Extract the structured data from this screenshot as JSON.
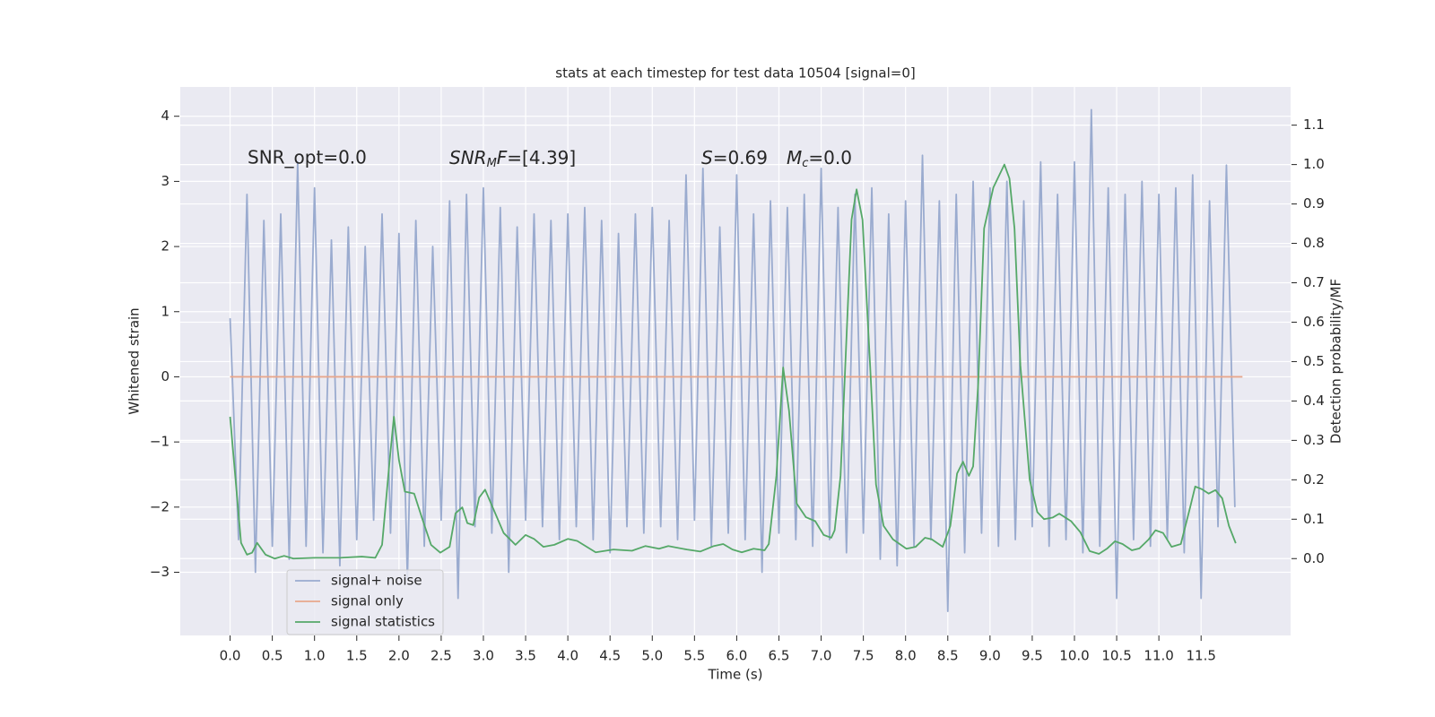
{
  "chart_data": {
    "type": "line",
    "title": "stats at each timestep for test data 10504 [signal=0]",
    "xlabel": "Time (s)",
    "ylabel": "Whitened strain",
    "y2label": "Detection probability/MF",
    "annotations": [
      {
        "text": "SNR_opt=0.0"
      },
      {
        "base": "SNR",
        "sub": "M",
        "base2": "F",
        "rest": "=[4.39]"
      },
      {
        "base": "S",
        "rest": "=0.69"
      },
      {
        "base": "M",
        "sub": "c",
        "rest": "=0.0"
      }
    ],
    "xlim": [
      -0.59,
      12.56
    ],
    "ylim": [
      -3.97,
      4.45
    ],
    "y2lim": [
      -0.195,
      1.197
    ],
    "xticks": [
      {
        "value": 0,
        "label": "0.0"
      },
      0.5,
      {
        "value": 1,
        "label": "1.0"
      },
      1.5,
      {
        "value": 2,
        "label": "2.0"
      },
      2.5,
      {
        "value": 3,
        "label": "3.0"
      },
      3.5,
      {
        "value": 4,
        "label": "4.0"
      },
      4.5,
      {
        "value": 5,
        "label": "5.0"
      },
      5.5,
      {
        "value": 6,
        "label": "6.0"
      },
      6.5,
      {
        "value": 7,
        "label": "7.0"
      },
      7.5,
      {
        "value": 8,
        "label": "8.0"
      },
      8.5,
      {
        "value": 9,
        "label": "9.0"
      },
      9.5,
      {
        "value": 10,
        "label": "10.0"
      },
      10.5,
      {
        "value": 11,
        "label": "11.0"
      },
      11.5
    ],
    "yticks": [
      {
        "value": -3,
        "label": "−3"
      },
      {
        "value": -2,
        "label": "−2"
      },
      {
        "value": -1,
        "label": "−1"
      },
      0,
      1,
      2,
      3,
      4
    ],
    "y2ticks": [
      {
        "value": 0,
        "label": "0.0"
      },
      0.1,
      0.2,
      0.3,
      0.4,
      0.5,
      0.6,
      0.7,
      0.8,
      0.9,
      {
        "value": 1,
        "label": "1.0"
      },
      1.1
    ],
    "grid": true,
    "legend": "lower left",
    "series": [
      {
        "name": "signal+ noise",
        "color": "#9aabcf",
        "axis": "y",
        "x": [
          0.0,
          0.1,
          0.2,
          0.3,
          0.4,
          0.5,
          0.6,
          0.7,
          0.8,
          0.9,
          1.0,
          1.1,
          1.2,
          1.3,
          1.4,
          1.5,
          1.6,
          1.7,
          1.8,
          1.9,
          2.0,
          2.1,
          2.2,
          2.3,
          2.4,
          2.5,
          2.6,
          2.7,
          2.8,
          2.9,
          3.0,
          3.1,
          3.2,
          3.3,
          3.4,
          3.5,
          3.6,
          3.7,
          3.8,
          3.9,
          4.0,
          4.1,
          4.2,
          4.3,
          4.4,
          4.5,
          4.6,
          4.7,
          4.8,
          4.9,
          5.0,
          5.1,
          5.2,
          5.3,
          5.4,
          5.5,
          5.6,
          5.7,
          5.8,
          5.9,
          6.0,
          6.1,
          6.2,
          6.3,
          6.4,
          6.5,
          6.6,
          6.7,
          6.8,
          6.9,
          7.0,
          7.1,
          7.2,
          7.3,
          7.4,
          7.5,
          7.6,
          7.7,
          7.8,
          7.9,
          8.0,
          8.1,
          8.2,
          8.3,
          8.4,
          8.5,
          8.6,
          8.7,
          8.8,
          8.9,
          9.0,
          9.1,
          9.2,
          9.3,
          9.4,
          9.5,
          9.6,
          9.7,
          9.8,
          9.9,
          10.0,
          10.1,
          10.2,
          10.3,
          10.4,
          10.5,
          10.6,
          10.7,
          10.8,
          10.9,
          11.0,
          11.1,
          11.2,
          11.3,
          11.4,
          11.5,
          11.6,
          11.7,
          11.8,
          11.9
        ],
        "values": [
          0.9,
          -2.5,
          2.8,
          -3.0,
          2.4,
          -2.6,
          2.5,
          -2.8,
          3.3,
          -2.6,
          2.9,
          -2.7,
          2.1,
          -2.9,
          2.3,
          -2.5,
          2.0,
          -2.2,
          2.5,
          -2.4,
          2.2,
          -3.1,
          2.4,
          -2.6,
          2.0,
          -2.2,
          2.7,
          -3.4,
          2.8,
          -2.3,
          2.9,
          -2.4,
          2.6,
          -3.0,
          2.3,
          -2.2,
          2.5,
          -2.3,
          2.4,
          -2.5,
          2.5,
          -2.3,
          2.6,
          -2.5,
          2.4,
          -2.7,
          2.2,
          -2.3,
          2.5,
          -2.4,
          2.6,
          -2.3,
          2.4,
          -2.5,
          3.1,
          -2.2,
          3.2,
          -2.6,
          2.3,
          -2.4,
          3.1,
          -2.5,
          2.5,
          -3.0,
          2.7,
          -2.4,
          2.6,
          -2.5,
          2.8,
          -2.6,
          3.2,
          -2.5,
          2.6,
          -2.7,
          2.8,
          -2.4,
          2.9,
          -2.8,
          2.5,
          -2.9,
          2.7,
          -2.6,
          3.4,
          -2.5,
          2.7,
          -3.6,
          2.8,
          -2.7,
          3.0,
          -2.4,
          2.9,
          -2.6,
          3.0,
          -2.5,
          2.7,
          -2.3,
          3.3,
          -2.6,
          2.8,
          -2.5,
          3.3,
          -2.7,
          4.1,
          -2.6,
          2.9,
          -3.4,
          2.8,
          -2.5,
          3.0,
          -2.6,
          2.8,
          -2.5,
          2.9,
          -2.7,
          3.1,
          -3.4,
          2.7,
          -2.3,
          3.25,
          -2.0
        ]
      },
      {
        "name": "signal only",
        "color": "#e8a78c",
        "axis": "y",
        "x": [
          0.0,
          11.99
        ],
        "values": [
          0,
          0
        ]
      },
      {
        "name": "signal statistics",
        "color": "#55a868",
        "axis": "y2",
        "x": [
          0.0,
          0.13,
          0.2,
          0.26,
          0.32,
          0.42,
          0.53,
          0.64,
          0.75,
          1.0,
          1.3,
          1.56,
          1.72,
          1.8,
          1.89,
          1.94,
          2.0,
          2.07,
          2.18,
          2.27,
          2.38,
          2.49,
          2.6,
          2.67,
          2.75,
          2.81,
          2.88,
          2.95,
          3.02,
          3.13,
          3.24,
          3.38,
          3.5,
          3.6,
          3.71,
          3.84,
          4.0,
          4.11,
          4.33,
          4.54,
          4.76,
          4.92,
          5.08,
          5.19,
          5.41,
          5.57,
          5.73,
          5.84,
          5.95,
          6.06,
          6.2,
          6.33,
          6.38,
          6.47,
          6.55,
          6.62,
          6.71,
          6.82,
          6.93,
          7.03,
          7.12,
          7.16,
          7.23,
          7.36,
          7.42,
          7.49,
          7.58,
          7.65,
          7.74,
          7.85,
          8.01,
          8.12,
          8.23,
          8.31,
          8.44,
          8.53,
          8.61,
          8.68,
          8.75,
          8.8,
          8.86,
          8.93,
          9.04,
          9.17,
          9.23,
          9.29,
          9.36,
          9.47,
          9.56,
          9.64,
          9.74,
          9.82,
          9.96,
          10.07,
          10.18,
          10.29,
          10.39,
          10.48,
          10.57,
          10.68,
          10.77,
          10.88,
          10.96,
          11.05,
          11.15,
          11.26,
          11.37,
          11.43,
          11.51,
          11.59,
          11.67,
          11.75,
          11.83,
          11.91
        ],
        "values": [
          0.36,
          0.04,
          0.01,
          0.015,
          0.04,
          0.01,
          0.0,
          0.007,
          0.0,
          0.002,
          0.002,
          0.005,
          0.002,
          0.035,
          0.25,
          0.36,
          0.25,
          0.17,
          0.165,
          0.105,
          0.035,
          0.015,
          0.03,
          0.115,
          0.13,
          0.09,
          0.085,
          0.155,
          0.175,
          0.12,
          0.065,
          0.035,
          0.06,
          0.05,
          0.03,
          0.035,
          0.05,
          0.045,
          0.016,
          0.023,
          0.02,
          0.032,
          0.025,
          0.032,
          0.023,
          0.018,
          0.032,
          0.037,
          0.023,
          0.016,
          0.025,
          0.021,
          0.037,
          0.21,
          0.485,
          0.375,
          0.14,
          0.105,
          0.095,
          0.06,
          0.053,
          0.072,
          0.21,
          0.86,
          0.937,
          0.86,
          0.49,
          0.188,
          0.083,
          0.049,
          0.025,
          0.03,
          0.053,
          0.049,
          0.03,
          0.083,
          0.216,
          0.246,
          0.21,
          0.234,
          0.443,
          0.838,
          0.942,
          1.0,
          0.965,
          0.838,
          0.49,
          0.2,
          0.118,
          0.1,
          0.104,
          0.114,
          0.095,
          0.067,
          0.019,
          0.012,
          0.026,
          0.044,
          0.037,
          0.021,
          0.026,
          0.049,
          0.072,
          0.065,
          0.03,
          0.037,
          0.13,
          0.183,
          0.176,
          0.165,
          0.174,
          0.153,
          0.083,
          0.039
        ]
      }
    ]
  }
}
